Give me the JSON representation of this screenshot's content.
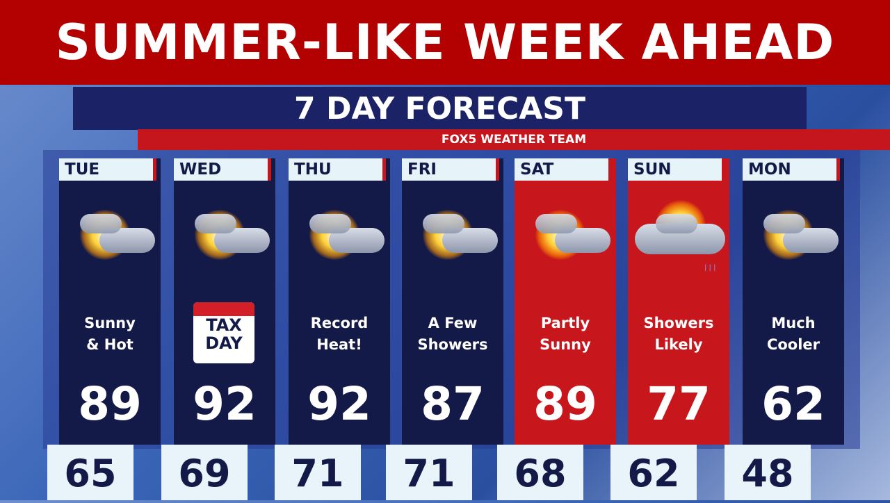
{
  "banner": {
    "title": "SUMMER-LIKE WEEK AHEAD"
  },
  "header": {
    "title": "7 DAY FORECAST",
    "subtitle": "FOX5 WEATHER TEAM"
  },
  "colors": {
    "banner": "#b30000",
    "navy": "#141a48",
    "red": "#c7161c",
    "header_bg": "#e6f3f8"
  },
  "days": [
    {
      "day": "TUE",
      "desc1": "Sunny",
      "desc2": "& Hot",
      "high": "89",
      "low": "65",
      "icon": "partly-sunny-icon",
      "highlight": false
    },
    {
      "day": "WED",
      "desc1": "TAX",
      "desc2": "DAY",
      "high": "92",
      "low": "69",
      "icon": "partly-sunny-icon",
      "highlight": false
    },
    {
      "day": "THU",
      "desc1": "Record",
      "desc2": "Heat!",
      "high": "92",
      "low": "71",
      "icon": "partly-sunny-icon",
      "highlight": false
    },
    {
      "day": "FRI",
      "desc1": "A Few",
      "desc2": "Showers",
      "high": "87",
      "low": "71",
      "icon": "partly-sunny-icon",
      "highlight": false
    },
    {
      "day": "SAT",
      "desc1": "Partly",
      "desc2": "Sunny",
      "high": "89",
      "low": "68",
      "icon": "partly-sunny-icon",
      "highlight": true
    },
    {
      "day": "SUN",
      "desc1": "Showers",
      "desc2": "Likely",
      "high": "77",
      "low": "62",
      "icon": "showers-icon",
      "highlight": true
    },
    {
      "day": "MON",
      "desc1": "Much",
      "desc2": "Cooler",
      "high": "62",
      "low": "48",
      "icon": "partly-sunny-icon",
      "highlight": false
    }
  ]
}
